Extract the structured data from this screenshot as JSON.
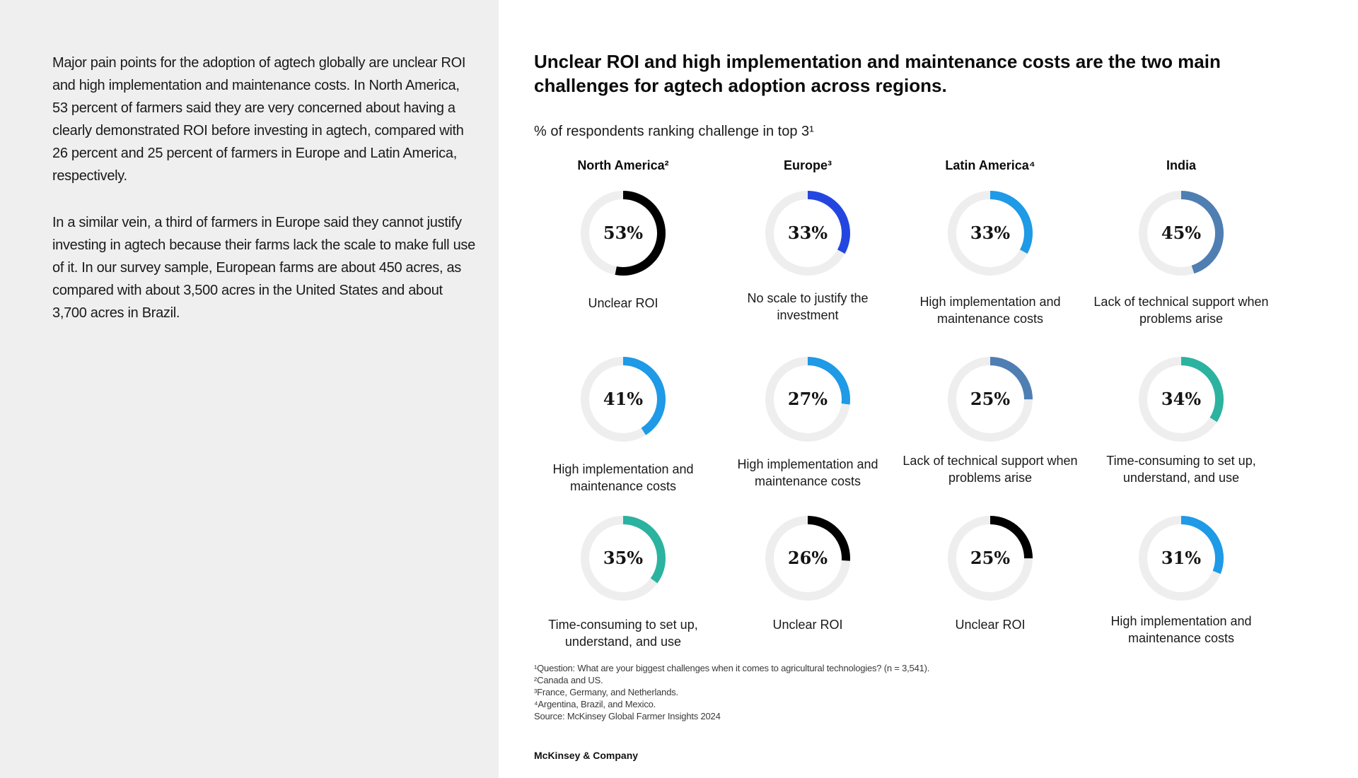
{
  "intro": {
    "paragraphs": [
      "Major pain points for the adoption of agtech globally are unclear ROI and high implementation and maintenance costs. In North America, 53 percent of farmers said they are very concerned about having a clearly demonstrated ROI before investing in agtech, compared with 26 percent and 25 percent of farmers in Europe and Latin America, respectively.",
      "In a similar vein, a third of farmers in Europe said they cannot justify investing in agtech because their farms lack the scale to make full use of it. In our survey sample, European farms are about 450 acres, as compared with about 3,500 acres in the United States and about 3,700 acres in Brazil."
    ]
  },
  "chart_data": {
    "type": "donut-grid",
    "title": "Unclear ROI and high implementation and maintenance costs are the two main challenges for agtech adoption across regions.",
    "subtitle": "% of respondents ranking challenge in top 3¹",
    "track_color": "#eeeeee",
    "regions": [
      {
        "name": "North America²",
        "challenges": [
          {
            "label": "Unclear ROI",
            "value": 53,
            "display": "53%",
            "color": "#000000"
          },
          {
            "label": "High implementation and maintenance costs",
            "value": 41,
            "display": "41%",
            "color": "#1e9ae6"
          },
          {
            "label": "Time-consuming to set up, understand, and use",
            "value": 35,
            "display": "35%",
            "color": "#2bb3a0"
          }
        ]
      },
      {
        "name": "Europe³",
        "challenges": [
          {
            "label": "No scale to justify the investment",
            "value": 33,
            "display": "33%",
            "color": "#2446e0"
          },
          {
            "label": "High implementation and maintenance costs",
            "value": 27,
            "display": "27%",
            "color": "#1e9ae6"
          },
          {
            "label": "Unclear ROI",
            "value": 26,
            "display": "26%",
            "color": "#000000"
          }
        ]
      },
      {
        "name": "Latin America⁴",
        "challenges": [
          {
            "label": "High implementation and maintenance costs",
            "value": 33,
            "display": "33%",
            "color": "#1e9ae6"
          },
          {
            "label": "Lack of technical support when problems arise",
            "value": 25,
            "display": "25%",
            "color": "#4f7eb3"
          },
          {
            "label": "Unclear ROI",
            "value": 25,
            "display": "25%",
            "color": "#000000"
          }
        ]
      },
      {
        "name": "India",
        "challenges": [
          {
            "label": "Lack of technical support when problems arise",
            "value": 45,
            "display": "45%",
            "color": "#4f7eb3"
          },
          {
            "label": "Time-consuming to set up, understand, and use",
            "value": 34,
            "display": "34%",
            "color": "#2bb3a0"
          },
          {
            "label": "High implementation and maintenance costs",
            "value": 31,
            "display": "31%",
            "color": "#1e9ae6"
          }
        ]
      }
    ]
  },
  "footnotes": [
    "¹Question: What are your biggest challenges when it comes to agricultural technologies? (n = 3,541).",
    "²Canada and US.",
    "³France, Germany, and Netherlands.",
    "⁴Argentina, Brazil, and Mexico.",
    "Source: McKinsey Global Farmer Insights 2024"
  ],
  "brand": "McKinsey & Company"
}
